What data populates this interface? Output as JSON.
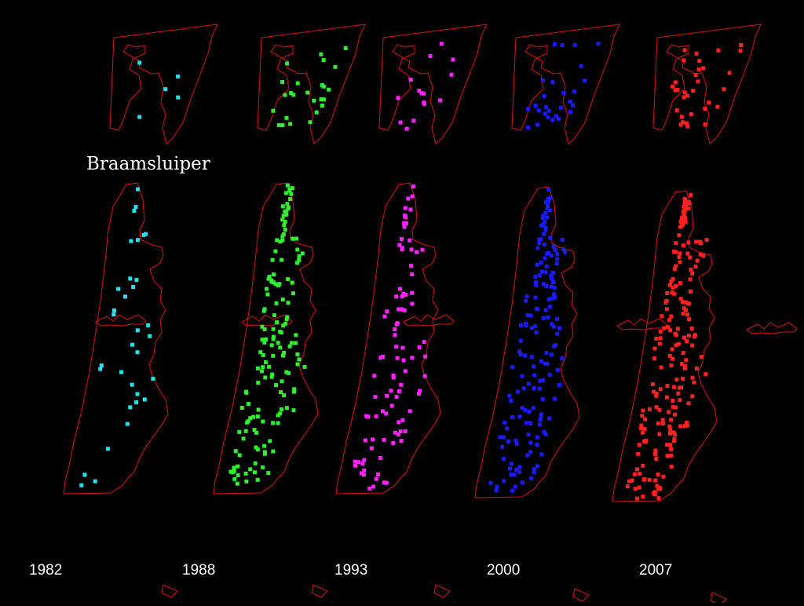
{
  "title": "Braamsluiper",
  "outline_color": "#e01010",
  "panels": [
    {
      "year": "1982",
      "marker_color": "#1ee6f0",
      "survey_points": 38
    },
    {
      "year": "1988",
      "marker_color": "#2ef02e",
      "survey_points": 175
    },
    {
      "year": "1993",
      "marker_color": "#ff22ff",
      "survey_points": 110
    },
    {
      "year": "2000",
      "marker_color": "#1a1aff",
      "survey_points": 190
    },
    {
      "year": "2007",
      "marker_color": "#ff2020",
      "survey_points": 235
    }
  ]
}
